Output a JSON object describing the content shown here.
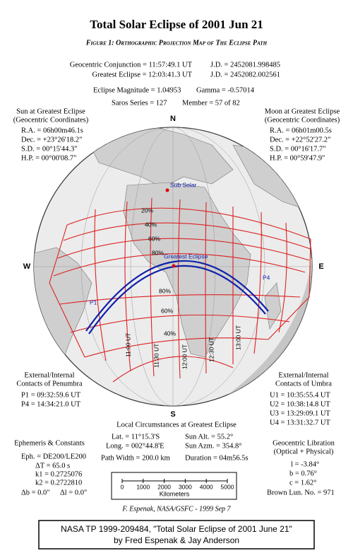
{
  "header": {
    "title": "Total Solar Eclipse of 2001 Jun 21",
    "subtitle": "Figure 1: Orthographic Projection Map of The Eclipse Path"
  },
  "elements": {
    "conjunction": "Geocentric Conjunction = 11:57:49.1 UT",
    "conjunction_jd": "J.D. = 2452081.998485",
    "greatest": "Greatest Eclipse = 12:03:41.3 UT",
    "greatest_jd": "J.D. = 2452082.002561",
    "magnitude": "Eclipse Magnitude = 1.04953",
    "gamma": "Gamma = -0.57014",
    "saros": "Saros Series = 127",
    "member": "Member = 57 of 82"
  },
  "sun": {
    "heading": [
      "Sun at Greatest Eclipse",
      "(Geocentric Coordinates)"
    ],
    "lines": [
      "R.A. = 06h00m46.1s",
      "Dec. = +23°26'18.2\"",
      "S.D. = 00°15'44.3\"",
      "H.P. = 00°00'08.7\""
    ]
  },
  "moon": {
    "heading": [
      "Moon at Greatest Eclipse",
      "(Geocentric Coordinates)"
    ],
    "lines": [
      "R.A. = 06h01m00.5s",
      "Dec. = +22°52'27.2\"",
      "S.D. = 00°16'17.7\"",
      "H.P. = 00°59'47.9\""
    ]
  },
  "globe": {
    "compass": {
      "n": "N",
      "s": "S",
      "w": "W",
      "e": "E"
    },
    "sub_solar": "Sub Solar",
    "greatest_eclipse": "Greatest Eclipse",
    "p1": "P1",
    "p4": "P4",
    "magnitude_labels": [
      "20%",
      "40%",
      "60%",
      "80%",
      "80%",
      "60%",
      "40%"
    ],
    "time_labels": [
      "11:00 UT",
      "11:30 UT",
      "12:00 UT",
      "12:30 UT",
      "13:00 UT"
    ]
  },
  "penumbra": {
    "heading": [
      "External/Internal",
      "Contacts of Penumbra"
    ],
    "lines": [
      "P1 = 09:32:59.6 UT",
      "P4 = 14:34:21.0 UT"
    ]
  },
  "umbra": {
    "heading": [
      "External/Internal",
      "Contacts of Umbra"
    ],
    "lines": [
      "U1 = 10:35:55.4 UT",
      "U2 = 10:38:14.8 UT",
      "U3 = 13:29:09.1 UT",
      "U4 = 13:31:32.7 UT"
    ]
  },
  "local": {
    "heading": "Local Circumstances at Greatest Eclipse",
    "rows": [
      [
        "Lat. = 11°15.3'S",
        "Sun Alt. = 55.2°"
      ],
      [
        "Long. = 002°44.8'E",
        "Sun Azm. = 354.8°"
      ],
      [
        "Path Width = 200.0 km",
        "Duration = 04m56.5s"
      ]
    ]
  },
  "ephemeris": {
    "heading": "Ephemeris & Constants",
    "lines": [
      "Eph. = DE200/LE200",
      "ΔT = 65.0 s",
      "k1 = 0.2725076",
      "k2 = 0.2722810",
      "Δb = 0.0\"",
      "Δl = 0.0\""
    ]
  },
  "libration": {
    "heading": [
      "Geocentric Libration",
      "(Optical + Physical)"
    ],
    "lines": [
      "l = -3.84°",
      "b = 0.76°",
      "c = 1.62°",
      "Brown Lun. No. = 971"
    ]
  },
  "scale": {
    "ticks": [
      0,
      1000,
      2000,
      3000,
      4000,
      5000
    ],
    "unit": "Kilometers"
  },
  "credit": "F. Espenak, NASA/GSFC - 1999 Sep 7",
  "footer": {
    "lines": [
      "NASA TP 1999-209484, \"Total Solar Eclipse of 2001 June 21\"",
      "by Fred Espenak & Jay Anderson"
    ]
  }
}
